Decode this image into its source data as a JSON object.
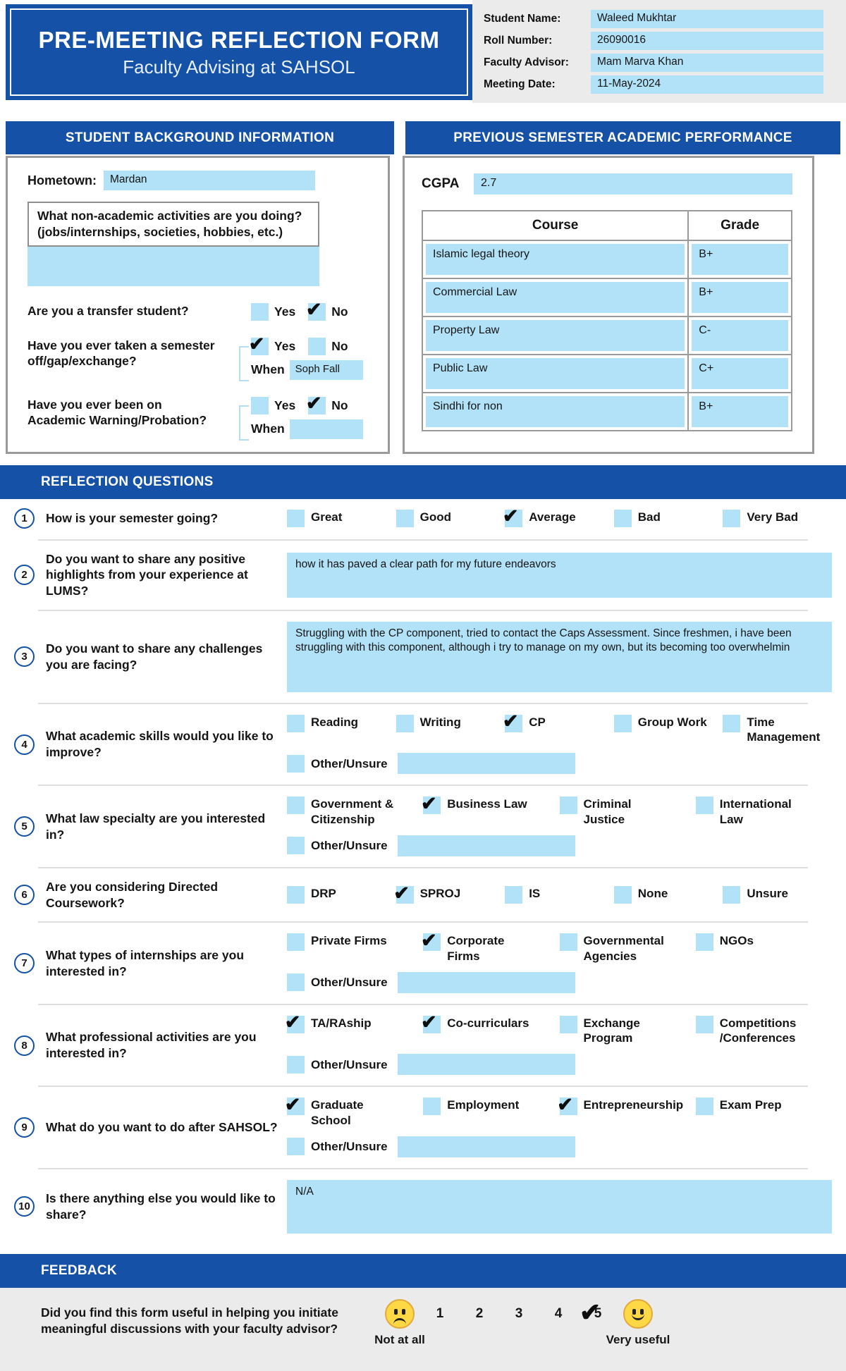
{
  "colors": {
    "primary_blue": "#1451A7",
    "field_blue": "#B2E2F8",
    "panel_gray": "#EBEBEB",
    "emoji_yellow": "#FFD845",
    "check_color": "#0e0e0e"
  },
  "header": {
    "title": "PRE-MEETING REFLECTION FORM",
    "subtitle": "Faculty Advising at SAHSOL",
    "student_fields": [
      {
        "label": "Student Name:",
        "value": "Waleed Mukhtar"
      },
      {
        "label": "Roll Number:",
        "value": "26090016"
      },
      {
        "label": "Faculty Advisor:",
        "value": "Mam Marva Khan"
      },
      {
        "label": "Meeting Date:",
        "value": "11-May-2024"
      }
    ]
  },
  "section_titles": {
    "background": "STUDENT BACKGROUND INFORMATION",
    "performance": "PREVIOUS SEMESTER ACADEMIC PERFORMANCE",
    "reflection": "REFLECTION QUESTIONS",
    "feedback": "FEEDBACK"
  },
  "background": {
    "hometown_label": "Hometown:",
    "hometown_value": "Mardan",
    "activities_question_line1": "What non-academic activities are you doing?",
    "activities_question_line2": "(jobs/internships, societies, hobbies, etc.)",
    "activities_answer": "",
    "yes_label": "Yes",
    "no_label": "No",
    "when_label": "When",
    "questions": [
      {
        "text": "Are you a transfer student?",
        "yes_mark": "",
        "no_mark": "✔"
      },
      {
        "text": "Have you ever taken a semester off/gap/exchange?",
        "yes_mark": "✔",
        "no_mark": "",
        "when_value": "Soph Fall"
      },
      {
        "text": "Have you ever been on Academic Warning/Probation?",
        "yes_mark": "",
        "no_mark": "✔",
        "when_value": ""
      }
    ]
  },
  "performance": {
    "cgpa_label": "CGPA",
    "cgpa_value": "2.7",
    "columns": [
      "Course",
      "Grade"
    ],
    "rows": [
      {
        "course": "Islamic legal theory",
        "grade": "B+"
      },
      {
        "course": "Commercial Law",
        "grade": "B+"
      },
      {
        "course": "Property Law",
        "grade": "C-"
      },
      {
        "course": "Public Law",
        "grade": "C+"
      },
      {
        "course": "Sindhi for non",
        "grade": "B+"
      }
    ]
  },
  "reflection": {
    "other_label": "Other/Unsure",
    "questions": [
      {
        "number": "1",
        "text": "How is your semester going?",
        "options": [
          {
            "label": "Great",
            "mark": ""
          },
          {
            "label": "Good",
            "mark": ""
          },
          {
            "label": "Average",
            "mark": "✔"
          },
          {
            "label": "Bad",
            "mark": ""
          },
          {
            "label": "Very Bad",
            "mark": ""
          }
        ]
      },
      {
        "number": "2",
        "text": "Do you want to share any positive highlights from your experience at LUMS?",
        "answer": "how it has paved a clear path for my future endeavors"
      },
      {
        "number": "3",
        "text": "Do you want to share any challenges you are facing?",
        "answer": "Struggling with the CP component, tried to contact the Caps Assessment. Since freshmen, i have been struggling with this component, although i try to manage on my own, but its becoming too overwhelmin"
      },
      {
        "number": "4",
        "text": "What academic skills would you like to improve?",
        "options": [
          {
            "label": "Reading",
            "mark": ""
          },
          {
            "label": "Writing",
            "mark": ""
          },
          {
            "label": "CP",
            "mark": "✔"
          },
          {
            "label": "Group Work",
            "mark": ""
          },
          {
            "label": "Time Management",
            "mark": ""
          }
        ],
        "other": {
          "mark": "",
          "value": ""
        }
      },
      {
        "number": "5",
        "text": "What law specialty are you interested in?",
        "options": [
          {
            "label": "Government & Citizenship",
            "mark": ""
          },
          {
            "label": "Business Law",
            "mark": "✔"
          },
          {
            "label": "Criminal Justice",
            "mark": ""
          },
          {
            "label": "International Law",
            "mark": ""
          }
        ],
        "other": {
          "mark": "",
          "value": ""
        }
      },
      {
        "number": "6",
        "text": "Are you considering Directed Coursework?",
        "options": [
          {
            "label": "DRP",
            "mark": ""
          },
          {
            "label": "SPROJ",
            "mark": "✔"
          },
          {
            "label": "IS",
            "mark": ""
          },
          {
            "label": "None",
            "mark": ""
          },
          {
            "label": "Unsure",
            "mark": ""
          }
        ]
      },
      {
        "number": "7",
        "text": "What types of internships are you interested in?",
        "options": [
          {
            "label": "Private Firms",
            "mark": ""
          },
          {
            "label": "Corporate Firms",
            "mark": "✔"
          },
          {
            "label": "Governmental Agencies",
            "mark": ""
          },
          {
            "label": "NGOs",
            "mark": ""
          }
        ],
        "other": {
          "mark": "",
          "value": ""
        }
      },
      {
        "number": "8",
        "text": "What professional activities are you interested in?",
        "options": [
          {
            "label": "TA/RAship",
            "mark": "✔"
          },
          {
            "label": "Co-curriculars",
            "mark": "✔"
          },
          {
            "label": "Exchange Program",
            "mark": ""
          },
          {
            "label": "Competitions /Conferences",
            "mark": ""
          }
        ],
        "other": {
          "mark": "",
          "value": ""
        }
      },
      {
        "number": "9",
        "text": "What do you want to do after SAHSOL?",
        "options": [
          {
            "label": "Graduate School",
            "mark": "✔"
          },
          {
            "label": "Employment",
            "mark": ""
          },
          {
            "label": "Entrepreneurship",
            "mark": "✔"
          },
          {
            "label": "Exam Prep",
            "mark": ""
          }
        ],
        "other": {
          "mark": "",
          "value": ""
        }
      },
      {
        "number": "10",
        "text": "Is there anything else you would like to share?",
        "answer": "N/A"
      }
    ]
  },
  "feedback": {
    "question": "Did you find this form useful in helping you initiate meaningful discussions with your faculty advisor?",
    "ratings": [
      {
        "label": "1",
        "mark": ""
      },
      {
        "label": "2",
        "mark": ""
      },
      {
        "label": "3",
        "mark": ""
      },
      {
        "label": "4",
        "mark": ""
      },
      {
        "label": "5",
        "mark": "✔"
      }
    ],
    "low_label": "Not at all",
    "high_label": "Very useful"
  }
}
